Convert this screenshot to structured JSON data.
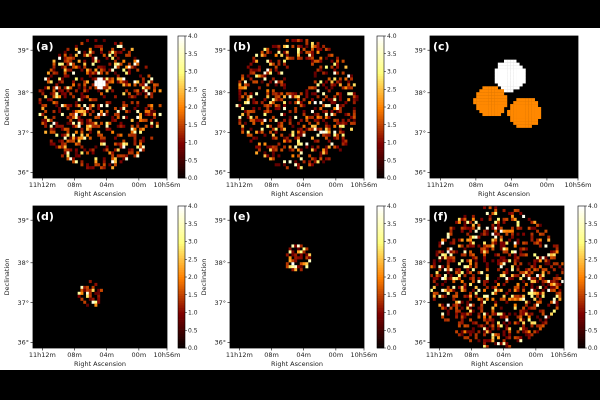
{
  "chart_data": [
    {
      "id": "a",
      "type": "heatmap",
      "letter": "(a)",
      "xlabel": "Right Ascension",
      "ylabel": "Declination",
      "xticks": [
        "11h12m",
        "08m",
        "04m",
        "00m",
        "10h56m"
      ],
      "yticks": [
        "39°",
        "38°",
        "37°",
        "36°"
      ],
      "colorbar": {
        "ticks": [
          "4.0",
          "3.5",
          "3.0",
          "2.5",
          "2.0",
          "1.5",
          "1.0",
          "0.5",
          "0.0"
        ],
        "range": [
          0,
          4.0
        ],
        "colormap": "afmhot"
      },
      "content": {
        "kind": "counts-disk",
        "center": [
          0.5,
          0.52
        ],
        "radius": 0.46,
        "density": 0.38,
        "bright_spot": true
      }
    },
    {
      "id": "b",
      "type": "heatmap",
      "letter": "(b)",
      "xlabel": "Right Ascension",
      "ylabel": "Declination",
      "xticks": [
        "11h12m",
        "08m",
        "04m",
        "00m",
        "10h56m"
      ],
      "yticks": [
        "39°",
        "38°",
        "37°",
        "36°"
      ],
      "colorbar": {
        "ticks": [
          "4.0",
          "3.5",
          "3.0",
          "2.5",
          "2.0",
          "1.5",
          "1.0",
          "0.5",
          "0.0"
        ],
        "range": [
          0,
          4.0
        ],
        "colormap": "afmhot"
      },
      "content": {
        "kind": "counts-disk-with-hole",
        "center": [
          0.5,
          0.52
        ],
        "radius": 0.46,
        "density": 0.38,
        "hole_center": [
          0.52,
          0.72
        ],
        "hole_radius": 0.11
      }
    },
    {
      "id": "c",
      "type": "heatmap",
      "letter": "(c)",
      "xlabel": "Right Ascension",
      "ylabel": "",
      "xticks": [
        "11h12m",
        "08m",
        "04m",
        "00m",
        "10h56m"
      ],
      "yticks": [
        "39°",
        "38°",
        "37°",
        "36°"
      ],
      "colorbar": null,
      "content": {
        "kind": "region-mask",
        "regions": [
          {
            "color": "#ffffff",
            "center": [
              0.54,
              0.72
            ],
            "radius": 0.11
          },
          {
            "color": "#ff8800",
            "center": [
              0.41,
              0.54
            ],
            "radius": 0.11
          },
          {
            "color": "#ff8800",
            "center": [
              0.64,
              0.46
            ],
            "radius": 0.11
          }
        ]
      }
    },
    {
      "id": "d",
      "type": "heatmap",
      "letter": "(d)",
      "xlabel": "Right Ascension",
      "ylabel": "Declination",
      "xticks": [
        "11h12m",
        "08m",
        "04m",
        "00m",
        "10h56m"
      ],
      "yticks": [
        "39°",
        "38°",
        "37°",
        "36°"
      ],
      "colorbar": {
        "ticks": [
          "4.0",
          "3.5",
          "3.0",
          "2.5",
          "2.0",
          "1.5",
          "1.0",
          "0.5",
          "0.0"
        ],
        "range": [
          0,
          4.0
        ],
        "colormap": "afmhot"
      },
      "content": {
        "kind": "counts-small-disk",
        "center": [
          0.43,
          0.38
        ],
        "radius": 0.09,
        "density": 0.55
      }
    },
    {
      "id": "e",
      "type": "heatmap",
      "letter": "(e)",
      "xlabel": "Right Ascension",
      "ylabel": "Declination",
      "xticks": [
        "11h12m",
        "08m",
        "04m",
        "00m",
        "10h56m"
      ],
      "yticks": [
        "39°",
        "38°",
        "37°",
        "36°"
      ],
      "colorbar": {
        "ticks": [
          "4.0",
          "3.5",
          "3.0",
          "2.5",
          "2.0",
          "1.5",
          "1.0",
          "0.5",
          "0.0"
        ],
        "range": [
          0,
          4.0
        ],
        "colormap": "afmhot"
      },
      "content": {
        "kind": "counts-small-disk",
        "center": [
          0.5,
          0.64
        ],
        "radius": 0.1,
        "density": 0.55
      }
    },
    {
      "id": "f",
      "type": "heatmap",
      "letter": "(f)",
      "xlabel": "Right Ascension",
      "ylabel": "Declination",
      "xticks": [
        "11h12m",
        "08m",
        "04m",
        "00m",
        "10h56m"
      ],
      "yticks": [
        "39°",
        "38°",
        "37°",
        "36°"
      ],
      "colorbar": {
        "ticks": [
          "4.0",
          "3.5",
          "3.0",
          "2.5",
          "2.0",
          "1.5",
          "1.0",
          "0.5",
          "0.0"
        ],
        "range": [
          0,
          4.0
        ],
        "colormap": "afmhot"
      },
      "content": {
        "kind": "counts-disk",
        "center": [
          0.5,
          0.5
        ],
        "radius": 0.5,
        "density": 0.42,
        "bright_spot": false
      }
    }
  ]
}
